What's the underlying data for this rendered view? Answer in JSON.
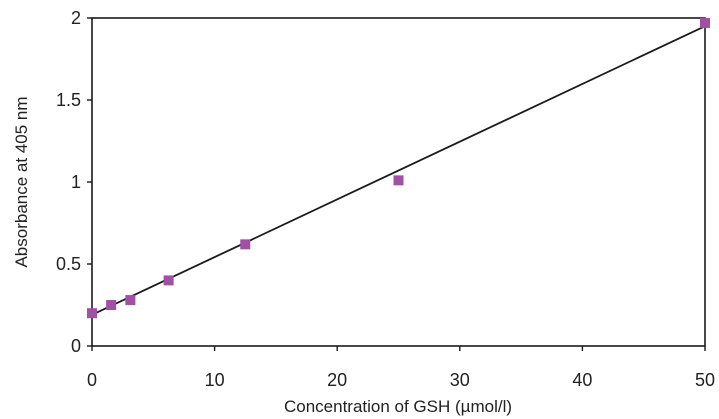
{
  "chart_data": {
    "type": "scatter",
    "title": "",
    "xlabel": "Concentration of GSH (µmol/l)",
    "ylabel": "Absorbance at 405 nm",
    "xlim": [
      0,
      50
    ],
    "ylim": [
      0,
      2
    ],
    "x_ticks": [
      0,
      10,
      20,
      30,
      40,
      50
    ],
    "y_ticks": [
      0,
      0.5,
      1,
      1.5,
      2
    ],
    "x_tick_labels": [
      "0",
      "10",
      "20",
      "30",
      "40",
      "50"
    ],
    "y_tick_labels": [
      "0",
      "0.5",
      "1",
      "1.5",
      "2"
    ],
    "grid": false,
    "legend": "none",
    "series": [
      {
        "marker": "square",
        "color": "#a24fa6",
        "x": [
          0,
          1.56,
          3.13,
          6.25,
          12.5,
          25,
          50
        ],
        "y": [
          0.2,
          0.25,
          0.28,
          0.4,
          0.62,
          1.01,
          1.97
        ]
      }
    ],
    "trendline": {
      "type": "linear",
      "color": "#1a1a1a",
      "x": [
        0,
        50
      ],
      "y": [
        0.19,
        1.95
      ]
    }
  }
}
